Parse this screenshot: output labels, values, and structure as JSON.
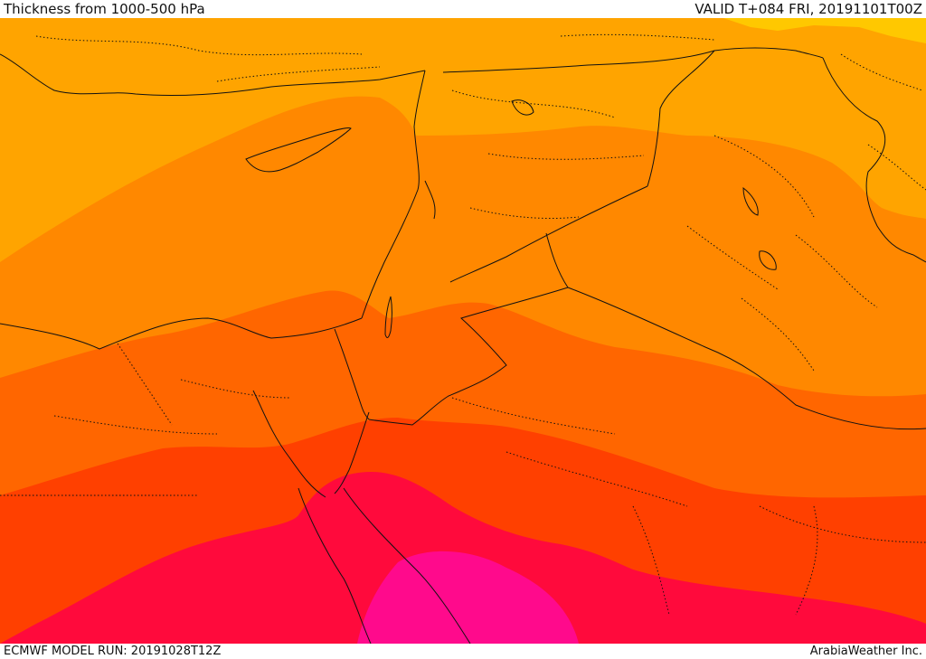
{
  "header": {
    "title": "Thickness from 1000-500 hPa",
    "valid": "VALID T+084 FRI, 20191101T00Z"
  },
  "footer": {
    "model_run": "ECMWF MODEL RUN: 20191028T12Z",
    "credit": "ArabiaWeather Inc."
  },
  "map": {
    "variable": "1000-500 hPa thickness",
    "bands": [
      {
        "name": "yellow",
        "color": "#ffc800"
      },
      {
        "name": "light-orange",
        "color": "#ffa400"
      },
      {
        "name": "orange",
        "color": "#ff8800"
      },
      {
        "name": "dark-orange",
        "color": "#ff6600"
      },
      {
        "name": "red-orange",
        "color": "#ff4000"
      },
      {
        "name": "crimson",
        "color": "#ff0a3c"
      },
      {
        "name": "magenta",
        "color": "#ff0a8c"
      }
    ]
  }
}
